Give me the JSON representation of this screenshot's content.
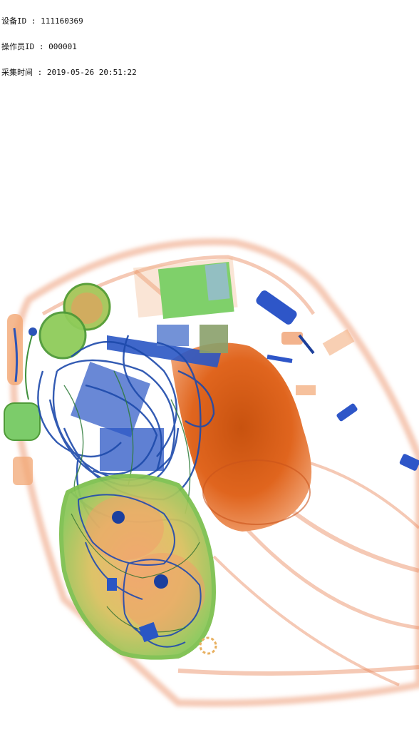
{
  "header": {
    "device_line": "设备ID : 111160369",
    "operator_line": "操作员ID : 000001",
    "capture_line": "采集时间 : 2019-05-26 20:51:22"
  },
  "colors": {
    "organic": "#e36a2c",
    "mixed": "#7ac35a",
    "inorganic": "#1f4fbf",
    "background": "#ffffff"
  }
}
